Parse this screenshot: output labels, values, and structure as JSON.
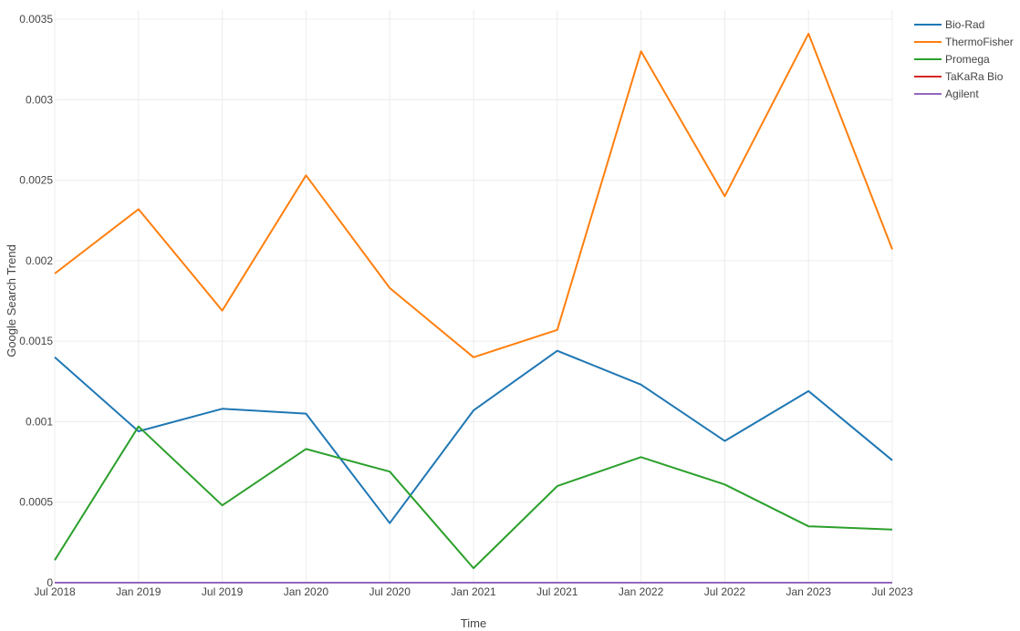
{
  "chart_data": {
    "type": "line",
    "xlabel": "Time",
    "ylabel": "Google Search Trend",
    "x": [
      "Jul 2018",
      "Jan 2019",
      "Jul 2019",
      "Jan 2020",
      "Jul 2020",
      "Jan 2021",
      "Jul 2021",
      "Jan 2022",
      "Jul 2022",
      "Jan 2023",
      "Jul 2023"
    ],
    "xticks": [
      "Jul 2018",
      "Jan 2019",
      "Jul 2019",
      "Jan 2020",
      "Jul 2020",
      "Jan 2021",
      "Jul 2021",
      "Jan 2022",
      "Jul 2022",
      "Jan 2023",
      "Jul 2023"
    ],
    "ylim": [
      0,
      0.0035
    ],
    "yticks": [
      0,
      0.0005,
      0.001,
      0.0015,
      0.002,
      0.0025,
      0.003,
      0.0035
    ],
    "ytick_labels": [
      "0",
      "0.0005",
      "0.001",
      "0.0015",
      "0.002",
      "0.0025",
      "0.003",
      "0.0035"
    ],
    "grid": true,
    "legend_position": "top-right",
    "series": [
      {
        "name": "Bio-Rad",
        "color": "#1f77b4",
        "values": [
          0.0014,
          0.00094,
          0.00108,
          0.00105,
          0.00037,
          0.00107,
          0.00144,
          0.00123,
          0.00088,
          0.00119,
          0.00076
        ]
      },
      {
        "name": "ThermoFisher",
        "color": "#ff7f0e",
        "values": [
          0.00192,
          0.00232,
          0.00169,
          0.00253,
          0.00183,
          0.0014,
          0.00157,
          0.0033,
          0.0024,
          0.00341,
          0.00207
        ]
      },
      {
        "name": "Promega",
        "color": "#2ca02c",
        "values": [
          0.00014,
          0.00097,
          0.00048,
          0.00083,
          0.00069,
          9e-05,
          0.0006,
          0.00078,
          0.00061,
          0.00035,
          0.00033
        ]
      },
      {
        "name": "TaKaRa Bio",
        "color": "#d62728",
        "values": [
          0,
          0,
          0,
          0,
          0,
          0,
          0,
          0,
          0,
          0,
          0
        ]
      },
      {
        "name": "Agilent",
        "color": "#9467bd",
        "values": [
          0,
          0,
          0,
          0,
          0,
          0,
          0,
          0,
          0,
          0,
          0
        ]
      }
    ]
  }
}
